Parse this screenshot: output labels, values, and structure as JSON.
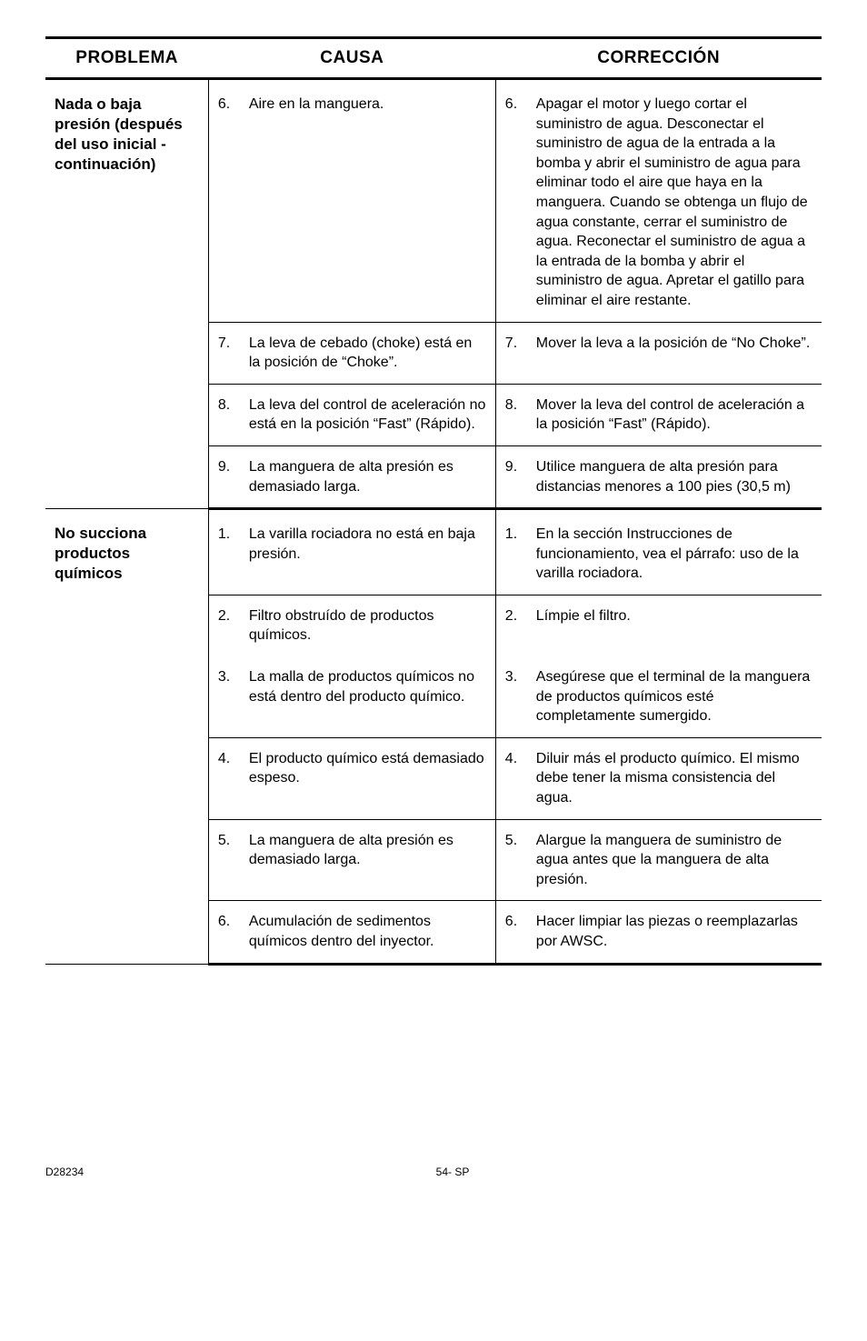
{
  "headers": {
    "problema": "PROBLEMA",
    "causa": "CAUSA",
    "correccion": "CORRECCIÓN"
  },
  "groups": [
    {
      "problema": "Nada o baja presión (después del uso inicial - continuación)",
      "rows": [
        {
          "n": "6.",
          "causa": "Aire en la manguera.",
          "corr": "Apagar el motor y luego cortar el suministro de agua. Desconectar el suministro de agua de la entrada a la bomba y abrir el suministro de agua para eliminar todo el aire que haya en la manguera. Cuando se obtenga un flujo de agua constante, cerrar el suministro de agua. Reconectar el suministro de agua a la entrada de la bomba y abrir el suministro de agua. Apretar el gatillo para eliminar el aire restante."
        },
        {
          "n": "7.",
          "causa": "La leva de cebado (choke) está en la posición de “Choke”.",
          "corr": "Mover la leva a la posición de “No Choke”."
        },
        {
          "n": "8.",
          "causa": "La leva del control de aceleración no está en la posición “Fast” (Rápido).",
          "corr": "Mover la leva del control de aceleración a la posición “Fast” (Rápido)."
        },
        {
          "n": "9.",
          "causa": "La manguera de alta presión es demasiado larga.",
          "corr": "Utilice manguera de alta presión para distancias menores a 100 pies (30,5 m)"
        }
      ]
    },
    {
      "problema": "No succiona productos químicos",
      "rows": [
        {
          "n": "1.",
          "causa": "La varilla rociadora no está en baja presión.",
          "corr": "En la sección Instrucciones de funcionamiento, vea el párrafo: uso de la varilla rociadora."
        },
        {
          "n": "2.",
          "causa": "Filtro obstruído de productos químicos.",
          "corr": "Límpie el filtro."
        },
        {
          "n": "3.",
          "causa": "La malla de productos químicos no está dentro del producto químico.",
          "corr": "Asegúrese que el terminal de la manguera de productos químicos esté completamente sumergido."
        },
        {
          "n": "4.",
          "causa": "El producto químico está demasiado espeso.",
          "corr": "Diluir más el producto químico. El mismo debe tener la misma consistencia del agua."
        },
        {
          "n": "5.",
          "causa": "La manguera de alta presión es demasiado larga.",
          "corr": "Alargue la manguera de suministro de agua antes que la manguera de alta presión."
        },
        {
          "n": "6.",
          "causa": "Acumulación de sedimentos químicos dentro del inyector.",
          "corr": "Hacer limpiar las piezas o reemplazarlas por AWSC."
        }
      ]
    }
  ],
  "footer": {
    "left": "D28234",
    "center": "54- SP"
  }
}
